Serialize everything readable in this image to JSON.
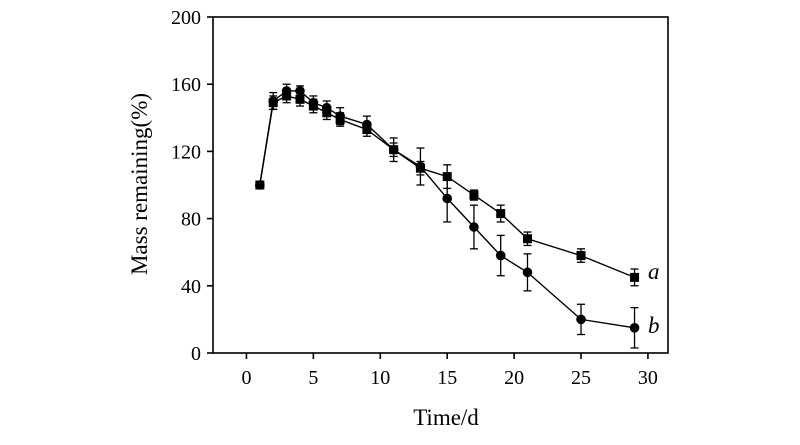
{
  "chart_data": {
    "type": "line",
    "title": "",
    "xlabel": "Time/d",
    "ylabel": "Mass remaining(%)",
    "xlim": [
      -2.5,
      31.5
    ],
    "ylim": [
      0,
      200
    ],
    "xticks": [
      0,
      5,
      10,
      15,
      20,
      25,
      30
    ],
    "yticks": [
      0,
      40,
      80,
      120,
      160,
      200
    ],
    "x_tick_labels": [
      "0",
      "5",
      "10",
      "15",
      "20",
      "25",
      "30"
    ],
    "y_tick_labels": [
      "0",
      "40",
      "80",
      "120",
      "160",
      "200"
    ],
    "grid": false,
    "legend": "none; series labelled inline at right end",
    "series": [
      {
        "name": "a",
        "marker": "square",
        "x": [
          1,
          2,
          3,
          4,
          5,
          6,
          7,
          9,
          11,
          13,
          15,
          17,
          19,
          21,
          25,
          29
        ],
        "y": [
          100,
          149,
          153,
          151,
          147,
          143,
          139,
          133,
          121,
          110,
          105,
          94,
          83,
          68,
          58,
          45
        ],
        "err": [
          0,
          4,
          4,
          4,
          4,
          4,
          4,
          4,
          4,
          4,
          7,
          3,
          5,
          4,
          4,
          5
        ]
      },
      {
        "name": "b",
        "marker": "circle",
        "x": [
          1,
          2,
          3,
          4,
          5,
          6,
          7,
          9,
          11,
          13,
          15,
          17,
          19,
          21,
          25,
          29
        ],
        "y": [
          100,
          150,
          156,
          156,
          149,
          146,
          141,
          136,
          121,
          111,
          92,
          75,
          58,
          48,
          20,
          15
        ],
        "err": [
          0,
          5,
          4,
          3,
          4,
          4,
          5,
          5,
          7,
          11,
          14,
          13,
          12,
          11,
          9,
          12
        ]
      }
    ]
  }
}
